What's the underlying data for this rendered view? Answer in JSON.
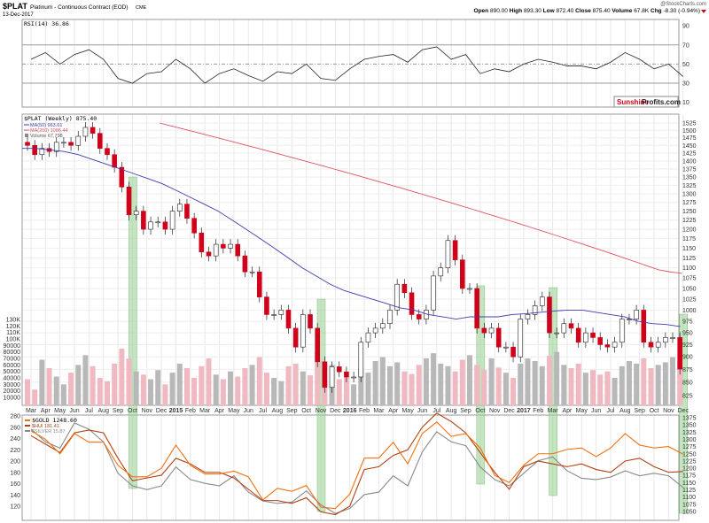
{
  "header": {
    "symbol": "$PLAT",
    "name": "Platinum - Continuous Contract (EOD)",
    "exchange": "CME",
    "date": "13-Dec-2017",
    "watermark": "@StockCharts.com",
    "open_label": "Open",
    "open": "890.00",
    "high_label": "High",
    "high": "893.30",
    "low_label": "Low",
    "low": "872.40",
    "close_label": "Close",
    "close": "875.40",
    "volume_label": "Volume",
    "volume": "67.8K",
    "chg_label": "Chg",
    "chg": "-8.30 (-0.94%)",
    "chg_icon": "down-triangle-icon"
  },
  "logo": {
    "part1": "Sunshine",
    "part2": "Profits.com"
  },
  "colors": {
    "up": "#ffffff",
    "down": "#d0021b",
    "ma50": "#3b3bb0",
    "ma200": "#e05060",
    "gold": "#f07010",
    "hui": "#b04010",
    "silver": "#8a8a8a",
    "highlight": "#9fd39a",
    "vol_up": "#b8b8b8",
    "vol_down": "#f0b8c0"
  },
  "chart_data": [
    {
      "type": "line",
      "title": "RSI(14) 36.86",
      "yticks": [
        90,
        70,
        50,
        30,
        10
      ],
      "ylim": [
        5,
        95
      ],
      "x_unit": "month from Mar 2014",
      "values": [
        55,
        62,
        50,
        60,
        65,
        55,
        35,
        30,
        40,
        42,
        55,
        45,
        30,
        40,
        45,
        38,
        32,
        42,
        40,
        50,
        35,
        33,
        45,
        55,
        58,
        60,
        52,
        65,
        68,
        55,
        60,
        40,
        45,
        42,
        50,
        55,
        52,
        48,
        48,
        45,
        52,
        62,
        55,
        45,
        50,
        37
      ]
    },
    {
      "type": "candlestick",
      "title": "$PLAT (Weekly) 875.40",
      "legend": [
        "MA(50) 963.61",
        "MA(200) 1086.44",
        "Volume 67,798"
      ],
      "scale": "log",
      "yticks": [
        1525,
        1500,
        1475,
        1450,
        1425,
        1400,
        1375,
        1350,
        1325,
        1300,
        1275,
        1250,
        1225,
        1200,
        1175,
        1150,
        1125,
        1100,
        1075,
        1050,
        1025,
        1000,
        975,
        950,
        925,
        900,
        875,
        850,
        825
      ],
      "ylim": [
        825,
        1525
      ],
      "volume_ticks": [
        "130K",
        "120K",
        "110K",
        "100K",
        "90000",
        "80000",
        "70000",
        "60000",
        "50000",
        "40000",
        "30000",
        "20000",
        "10000"
      ],
      "x_unit": "half-month from Mar 2014",
      "close": [
        1450,
        1420,
        1440,
        1430,
        1460,
        1460,
        1450,
        1480,
        1510,
        1490,
        1440,
        1420,
        1380,
        1320,
        1240,
        1250,
        1200,
        1220,
        1220,
        1200,
        1250,
        1270,
        1230,
        1190,
        1140,
        1130,
        1160,
        1150,
        1160,
        1130,
        1090,
        1090,
        1030,
        990,
        990,
        1000,
        960,
        920,
        990,
        960,
        890,
        840,
        880,
        870,
        860,
        860,
        930,
        950,
        960,
        970,
        1000,
        1060,
        1040,
        990,
        980,
        1000,
        1080,
        1100,
        1170,
        1120,
        1050,
        1050,
        960,
        950,
        960,
        920,
        920,
        900,
        980,
        990,
        1010,
        1030,
        950,
        950,
        970,
        960,
        930,
        950,
        940,
        925,
        920,
        930,
        980,
        980,
        1000,
        930,
        920,
        930,
        940,
        940,
        875.4
      ],
      "volume": [
        38,
        22,
        68,
        55,
        42,
        30,
        48,
        60,
        75,
        58,
        40,
        35,
        62,
        85,
        70,
        50,
        45,
        38,
        52,
        30,
        48,
        62,
        55,
        40,
        58,
        70,
        45,
        38,
        50,
        42,
        55,
        60,
        72,
        48,
        40,
        35,
        58,
        62,
        50,
        44,
        80,
        65,
        60,
        38,
        42,
        30,
        55,
        48,
        66,
        72,
        58,
        64,
        50,
        46,
        60,
        70,
        78,
        62,
        58,
        50,
        68,
        75,
        60,
        52,
        70,
        56,
        48,
        40,
        62,
        70,
        66,
        58,
        74,
        80,
        60,
        55,
        62,
        48,
        52,
        45,
        50,
        40,
        58,
        66,
        62,
        70,
        55,
        60,
        64,
        72,
        67.8
      ],
      "ma50": [
        1440,
        1440,
        1435,
        1430,
        1420,
        1405,
        1390,
        1375,
        1360,
        1345,
        1330,
        1310,
        1290,
        1270,
        1250,
        1225,
        1200,
        1175,
        1150,
        1125,
        1100,
        1080,
        1060,
        1045,
        1035,
        1025,
        1015,
        1005,
        1000,
        990,
        985,
        980,
        985,
        985,
        985,
        990,
        992,
        995,
        998,
        1000,
        1000,
        995,
        990,
        985,
        975,
        970,
        968,
        963.61
      ],
      "ma200": [
        1525,
        1515,
        1505,
        1495,
        1485,
        1475,
        1465,
        1455,
        1445,
        1435,
        1425,
        1415,
        1405,
        1395,
        1385,
        1375,
        1365,
        1355,
        1345,
        1335,
        1325,
        1315,
        1305,
        1295,
        1285,
        1275,
        1265,
        1255,
        1245,
        1235,
        1225,
        1215,
        1205,
        1195,
        1185,
        1175,
        1165,
        1155,
        1145,
        1135,
        1125,
        1115,
        1105,
        1095,
        1090,
        1086.44
      ],
      "highlights": [
        "2014-10",
        "2015-11",
        "2016-10",
        "2017-03",
        "2017-12"
      ]
    },
    {
      "type": "line",
      "legend": [
        "$GOLD 1248.60",
        "$HUI 181.41",
        "$SILVER 15.87"
      ],
      "yticks_left": [
        280,
        260,
        240,
        220,
        200,
        180,
        160,
        140,
        120
      ],
      "yticks_right": [
        1375,
        1350,
        1325,
        1300,
        1275,
        1250,
        1225,
        1200,
        1175,
        1150,
        1125,
        1100,
        1075,
        1050
      ],
      "x_unit": "month from Mar 2014",
      "series": [
        {
          "name": "$GOLD",
          "axis": "right",
          "values": [
            1330,
            1300,
            1250,
            1320,
            1290,
            1290,
            1210,
            1170,
            1170,
            1200,
            1280,
            1210,
            1180,
            1180,
            1190,
            1170,
            1090,
            1130,
            1120,
            1140,
            1065,
            1060,
            1110,
            1235,
            1235,
            1290,
            1215,
            1320,
            1360,
            1310,
            1320,
            1270,
            1175,
            1150,
            1210,
            1250,
            1250,
            1265,
            1270,
            1240,
            1270,
            1320,
            1280,
            1270,
            1275,
            1248.6
          ]
        },
        {
          "name": "$HUI",
          "axis": "left",
          "values": [
            245,
            230,
            215,
            250,
            255,
            250,
            205,
            165,
            170,
            175,
            205,
            195,
            180,
            180,
            170,
            150,
            130,
            130,
            125,
            135,
            110,
            105,
            120,
            185,
            190,
            210,
            220,
            260,
            285,
            270,
            250,
            215,
            180,
            150,
            190,
            200,
            195,
            190,
            195,
            185,
            180,
            200,
            205,
            190,
            180,
            181.41
          ]
        },
        {
          "name": "$SILVER",
          "axis": "hidden",
          "values": [
            20.5,
            19.5,
            19.0,
            21.0,
            20.5,
            19.5,
            17.0,
            16.0,
            15.7,
            16.0,
            17.5,
            16.5,
            16.2,
            16.0,
            16.8,
            15.5,
            14.8,
            14.6,
            14.7,
            15.6,
            14.5,
            13.8,
            14.2,
            15.3,
            15.5,
            16.8,
            16.0,
            18.7,
            20.3,
            19.5,
            19.2,
            17.5,
            16.5,
            16.0,
            17.0,
            18.0,
            18.3,
            17.2,
            16.6,
            16.5,
            16.7,
            17.2,
            16.8,
            17.0,
            16.8,
            15.87
          ]
        }
      ]
    }
  ],
  "xaxis": [
    {
      "label": "Mar"
    },
    {
      "label": "Apr"
    },
    {
      "label": "May"
    },
    {
      "label": "Jun"
    },
    {
      "label": "Jul"
    },
    {
      "label": "Aug"
    },
    {
      "label": "Sep"
    },
    {
      "label": "Oct"
    },
    {
      "label": "Nov"
    },
    {
      "label": "Dec"
    },
    {
      "label": "2015",
      "year": true
    },
    {
      "label": "Feb"
    },
    {
      "label": "Mar"
    },
    {
      "label": "Apr"
    },
    {
      "label": "May"
    },
    {
      "label": "Jun"
    },
    {
      "label": "Jul"
    },
    {
      "label": "Aug"
    },
    {
      "label": "Sep"
    },
    {
      "label": "Oct"
    },
    {
      "label": "Nov"
    },
    {
      "label": "Dec"
    },
    {
      "label": "2016",
      "year": true
    },
    {
      "label": "Feb"
    },
    {
      "label": "Mar"
    },
    {
      "label": "Apr"
    },
    {
      "label": "May"
    },
    {
      "label": "Jun"
    },
    {
      "label": "Jul"
    },
    {
      "label": "Aug"
    },
    {
      "label": "Sep"
    },
    {
      "label": "Oct"
    },
    {
      "label": "Nov"
    },
    {
      "label": "Dec"
    },
    {
      "label": "2017",
      "year": true
    },
    {
      "label": "Feb"
    },
    {
      "label": "Mar"
    },
    {
      "label": "Apr"
    },
    {
      "label": "May"
    },
    {
      "label": "Jun"
    },
    {
      "label": "Jul"
    },
    {
      "label": "Aug"
    },
    {
      "label": "Sep"
    },
    {
      "label": "Oct"
    },
    {
      "label": "Nov"
    },
    {
      "label": "Dec"
    }
  ]
}
